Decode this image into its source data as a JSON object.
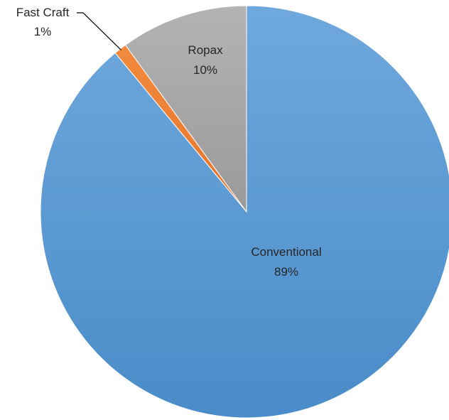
{
  "chart_data": {
    "type": "pie",
    "title": "",
    "slices": [
      {
        "label": "Conventional",
        "value": 89,
        "percent_label": "89%",
        "color": "#5b9bd5"
      },
      {
        "label": "Fast Craft",
        "value": 1,
        "percent_label": "1%",
        "color": "#ed7d31"
      },
      {
        "label": "Ropax",
        "value": 10,
        "percent_label": "10%",
        "color": "#a5a5a5"
      }
    ],
    "start_angle_deg": 0,
    "direction": "clockwise",
    "legend": "none",
    "data_labels": "category-and-percent",
    "leader_lines": true
  }
}
